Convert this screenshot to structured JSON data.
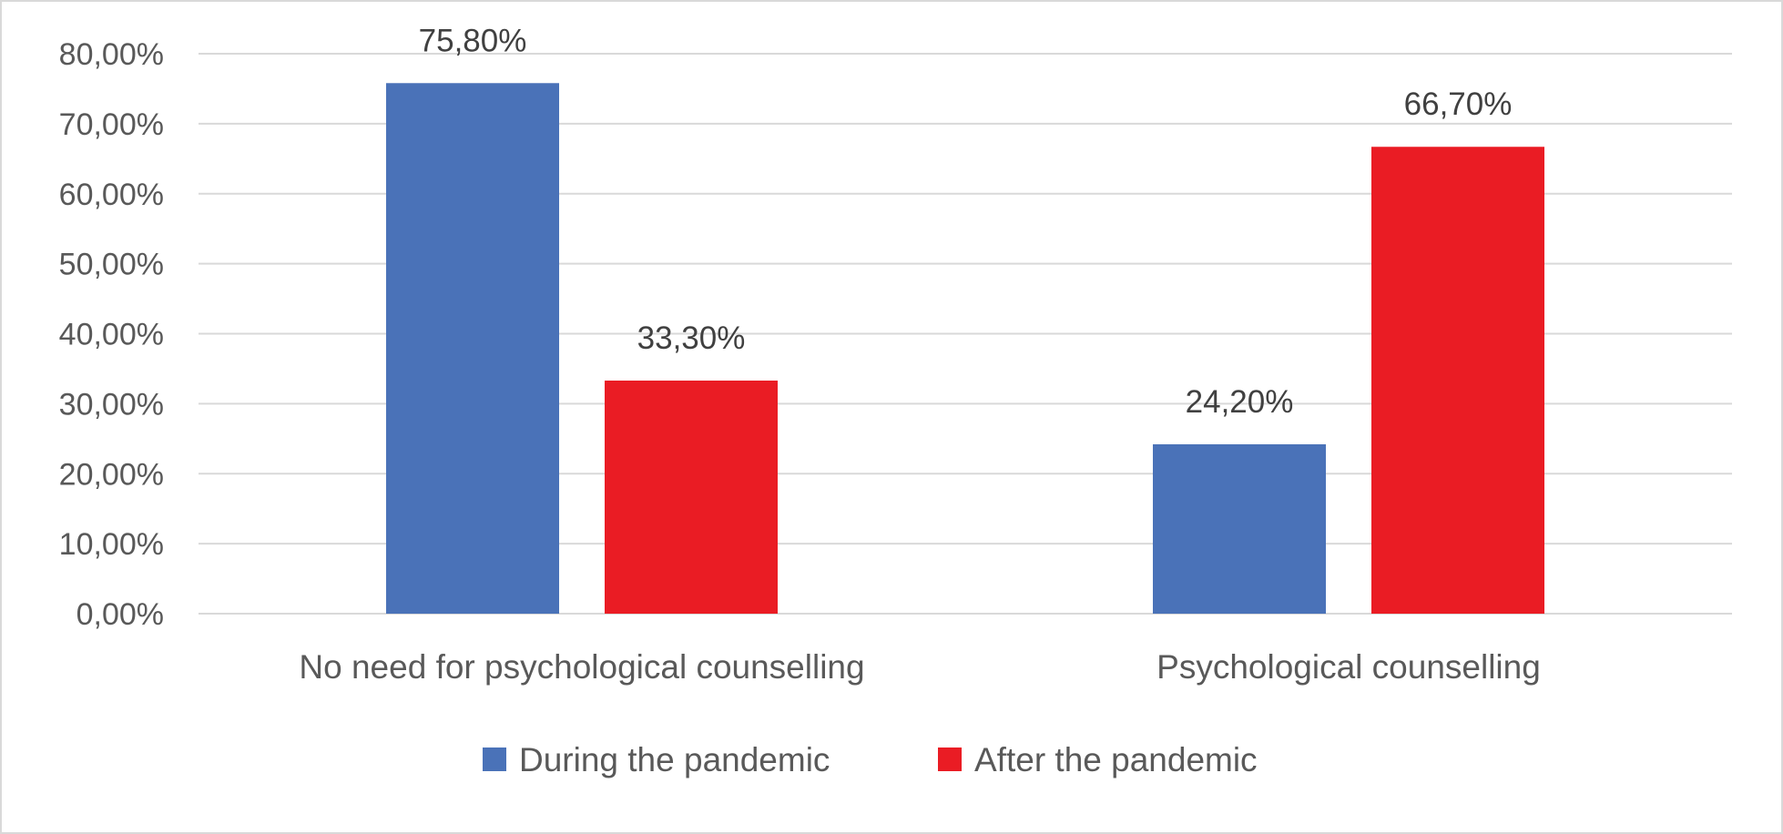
{
  "chart_data": {
    "type": "bar",
    "categories": [
      "No need for psychological counselling",
      "Psychological counselling"
    ],
    "series": [
      {
        "name": "During the pandemic",
        "color": "#4a72b8",
        "values": [
          75.8,
          24.2
        ],
        "labels": [
          "75,80%",
          "24,20%"
        ]
      },
      {
        "name": "After the pandemic",
        "color": "#ea1c24",
        "values": [
          33.3,
          66.7
        ],
        "labels": [
          "33,30%",
          "66,70%"
        ]
      }
    ],
    "ylim": [
      0,
      80
    ],
    "yticks": [
      0,
      10,
      20,
      30,
      40,
      50,
      60,
      70,
      80
    ],
    "ytick_labels": [
      "0,00%",
      "10,00%",
      "20,00%",
      "30,00%",
      "40,00%",
      "50,00%",
      "60,00%",
      "70,00%",
      "80,00%"
    ],
    "grid": true,
    "legend_position": "bottom",
    "title": "",
    "xlabel": "",
    "ylabel": ""
  }
}
